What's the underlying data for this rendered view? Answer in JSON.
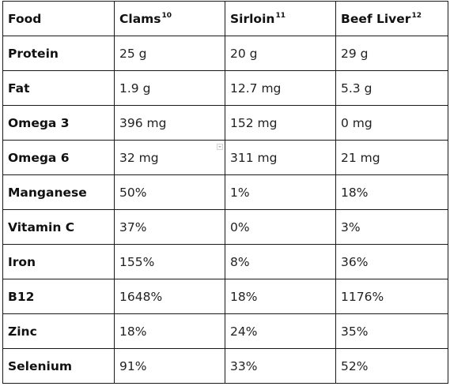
{
  "table": {
    "headers": [
      {
        "label": "Food",
        "sup": ""
      },
      {
        "label": "Clams",
        "sup": "10"
      },
      {
        "label": "Sirloin",
        "sup": "11"
      },
      {
        "label": "Beef Liver",
        "sup": "12"
      }
    ],
    "rows": [
      {
        "nutrient": "Protein",
        "values": [
          "25 g",
          "20 g",
          "29 g"
        ]
      },
      {
        "nutrient": "Fat",
        "values": [
          "1.9 g",
          "12.7 mg",
          "5.3 g"
        ]
      },
      {
        "nutrient": "Omega 3",
        "values": [
          "396 mg",
          "152 mg",
          "0 mg"
        ]
      },
      {
        "nutrient": "Omega 6",
        "values": [
          "32 mg",
          "311 mg",
          "21 mg"
        ]
      },
      {
        "nutrient": "Manganese",
        "values": [
          "50%",
          "1%",
          "18%"
        ]
      },
      {
        "nutrient": "Vitamin C",
        "values": [
          "37%",
          "0%",
          "3%"
        ]
      },
      {
        "nutrient": "Iron",
        "values": [
          "155%",
          "8%",
          "36%"
        ]
      },
      {
        "nutrient": "B12",
        "values": [
          "1648%",
          "18%",
          "1176%"
        ]
      },
      {
        "nutrient": "Zinc",
        "values": [
          "18%",
          "24%",
          "35%"
        ]
      },
      {
        "nutrient": "Selenium",
        "values": [
          "91%",
          "33%",
          "52%"
        ]
      }
    ]
  }
}
